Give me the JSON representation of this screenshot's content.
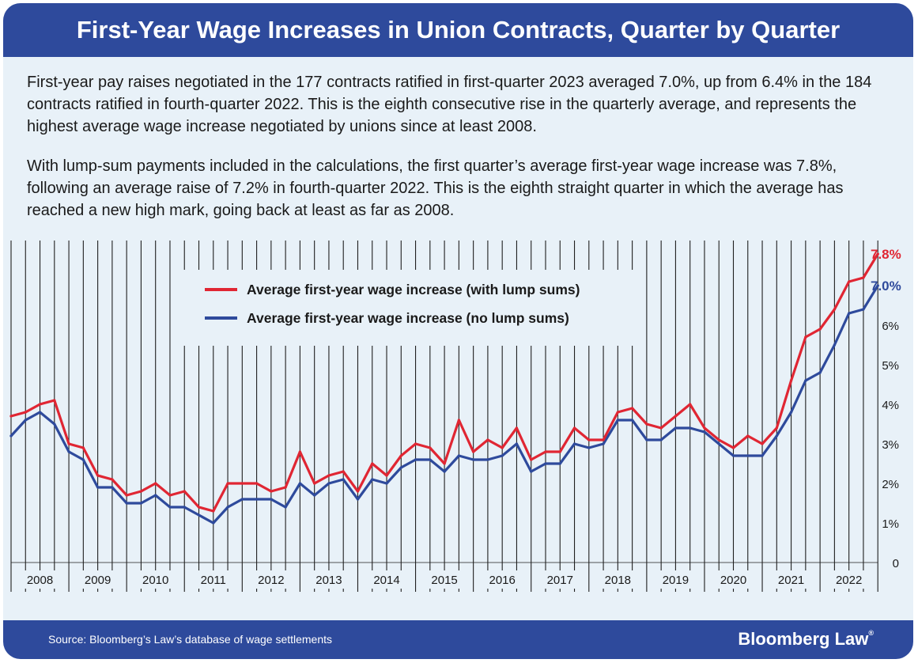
{
  "header": {
    "title": "First-Year Wage Increases in Union Contracts, Quarter by Quarter"
  },
  "intro": {
    "paragraph1": "First-year pay raises negotiated in the 177 contracts ratified in first-quarter 2023 averaged 7.0%, up from 6.4% in the 184 contracts ratified in fourth-quarter 2022. This is the eighth consecutive rise in the quarterly average, and represents the highest average wage increase negotiated by unions since at least 2008.",
    "paragraph2": "With lump-sum payments included in the calculations, the first quarter’s average first-year wage increase was 7.8%, following an average raise of 7.2% in fourth-quarter 2022. This is the eighth straight quarter in which the average has reached a new high mark, going back at least as far as 2008."
  },
  "footer": {
    "source": "Source: Bloomberg’s Law’s database of wage settlements",
    "brand": "Bloomberg Law",
    "brand_mark": "®"
  },
  "colors": {
    "red": "#e02633",
    "blue": "#2e4a9c",
    "banner": "#2e4a9c",
    "background": "#e8f1f8"
  },
  "chart_data": {
    "type": "line",
    "title": "",
    "xlabel": "",
    "ylabel": "",
    "ylim": [
      0,
      8
    ],
    "y_ticks": [
      {
        "value": 0,
        "label": "0"
      },
      {
        "value": 1,
        "label": "1%"
      },
      {
        "value": 2,
        "label": "2%"
      },
      {
        "value": 3,
        "label": "3%"
      },
      {
        "value": 4,
        "label": "4%"
      },
      {
        "value": 5,
        "label": "5%"
      },
      {
        "value": 6,
        "label": "6%"
      },
      {
        "value": 7,
        "label": "7.0%"
      },
      {
        "value": 7.8,
        "label": "7.8%"
      }
    ],
    "year_labels": [
      "2008",
      "2009",
      "2010",
      "2011",
      "2012",
      "2013",
      "2014",
      "2015",
      "2016",
      "2017",
      "2018",
      "2019",
      "2020",
      "2021",
      "2022"
    ],
    "quarters_per_year": 4,
    "grid": "vertical lines at each quarter",
    "legend_position": "upper-left inside plot",
    "end_labels": {
      "with_lump_sums": "7.8%",
      "no_lump_sums": "7.0%"
    },
    "series": [
      {
        "name": "Average first-year wage increase (with lump sums)",
        "color": "#e02633",
        "values": [
          3.7,
          3.8,
          4.0,
          4.1,
          3.0,
          2.9,
          2.2,
          2.1,
          1.7,
          1.8,
          2.0,
          1.7,
          1.8,
          1.4,
          1.3,
          2.0,
          2.0,
          2.0,
          1.8,
          1.9,
          2.8,
          2.0,
          2.2,
          2.3,
          1.8,
          2.5,
          2.2,
          2.7,
          3.0,
          2.9,
          2.5,
          3.6,
          2.8,
          3.1,
          2.9,
          3.4,
          2.6,
          2.8,
          2.8,
          3.4,
          3.1,
          3.1,
          3.8,
          3.9,
          3.5,
          3.4,
          3.7,
          4.0,
          3.4,
          3.1,
          2.9,
          3.2,
          3.0,
          3.4,
          4.6,
          5.7,
          5.9,
          6.4,
          7.1,
          7.2,
          7.8
        ]
      },
      {
        "name": "Average first-year wage increase (no lump sums)",
        "color": "#2e4a9c",
        "values": [
          3.2,
          3.6,
          3.8,
          3.5,
          2.8,
          2.6,
          1.9,
          1.9,
          1.5,
          1.5,
          1.7,
          1.4,
          1.4,
          1.2,
          1.0,
          1.4,
          1.6,
          1.6,
          1.6,
          1.4,
          2.0,
          1.7,
          2.0,
          2.1,
          1.6,
          2.1,
          2.0,
          2.4,
          2.6,
          2.6,
          2.3,
          2.7,
          2.6,
          2.6,
          2.7,
          3.0,
          2.3,
          2.5,
          2.5,
          3.0,
          2.9,
          3.0,
          3.6,
          3.6,
          3.1,
          3.1,
          3.4,
          3.4,
          3.3,
          3.0,
          2.7,
          2.7,
          2.7,
          3.2,
          3.8,
          4.6,
          4.8,
          5.5,
          6.3,
          6.4,
          7.0
        ]
      }
    ]
  }
}
